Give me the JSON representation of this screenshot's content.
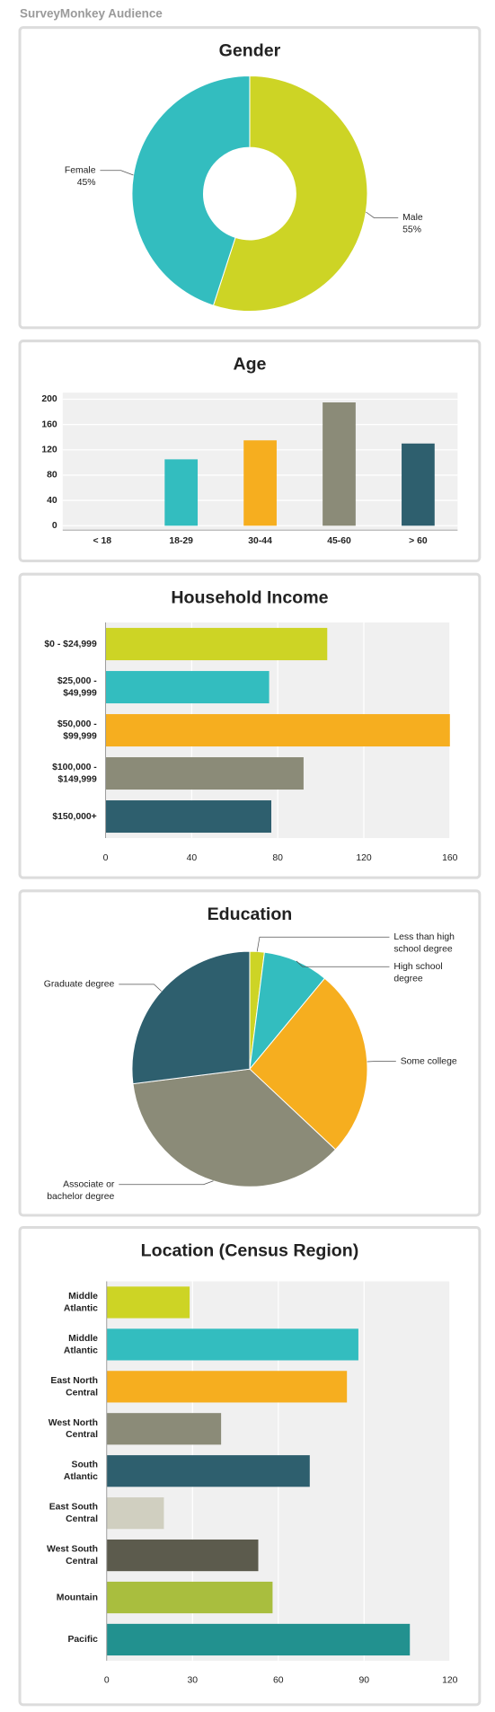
{
  "page_title": "SurveyMonkey Audience",
  "chart_data": [
    {
      "type": "donut",
      "title": "Gender",
      "categories": [
        [
          "Male"
        ],
        [
          "Female"
        ]
      ],
      "values": [
        55,
        45
      ],
      "value_labels": [
        "55%",
        "45%"
      ],
      "colors": [
        "#cdd425",
        "#33bdbf"
      ]
    },
    {
      "type": "bar",
      "title": "Age",
      "categories": [
        [
          "< 18"
        ],
        [
          "18-29"
        ],
        [
          "30-44"
        ],
        [
          "45-60"
        ],
        [
          "> 60"
        ]
      ],
      "values": [
        0,
        105,
        135,
        195,
        130
      ],
      "colors": [
        "#cdd425",
        "#33bdbf",
        "#f6ae1f",
        "#8b8b78",
        "#2e5f6e"
      ],
      "ylim": [
        0,
        200
      ],
      "yticks": [
        0,
        40,
        80,
        120,
        160,
        200
      ],
      "grid": true
    },
    {
      "type": "hbar",
      "title": "Household Income",
      "categories": [
        [
          "$0 - $24,999"
        ],
        [
          "$25,000 -",
          "$49,999"
        ],
        [
          "$50,000 -",
          "$99,999"
        ],
        [
          "$100,000 -",
          "$149,999"
        ],
        [
          "$150,000+"
        ]
      ],
      "values": [
        103,
        76,
        160,
        92,
        77
      ],
      "colors": [
        "#cdd425",
        "#33bdbf",
        "#f6ae1f",
        "#8b8b78",
        "#2e5f6e"
      ],
      "xlim": [
        0,
        160
      ],
      "xticks": [
        0,
        40,
        80,
        120,
        160
      ],
      "grid": true
    },
    {
      "type": "pie",
      "title": "Education",
      "categories": [
        [
          "Less than high",
          "school degree"
        ],
        [
          "High school",
          "degree"
        ],
        [
          "Some college"
        ],
        [
          "Associate or",
          "bachelor degree"
        ],
        [
          "Graduate degree"
        ]
      ],
      "values": [
        2,
        9,
        26,
        36,
        27
      ],
      "colors": [
        "#cdd425",
        "#33bdbf",
        "#f6ae1f",
        "#8b8b78",
        "#2e5f6e"
      ]
    },
    {
      "type": "hbar",
      "title": "Location (Census Region)",
      "categories": [
        [
          "Middle",
          "Atlantic"
        ],
        [
          "Middle",
          "Atlantic"
        ],
        [
          "East North",
          "Central"
        ],
        [
          "West North",
          "Central"
        ],
        [
          "South",
          "Atlantic"
        ],
        [
          "East South",
          "Central"
        ],
        [
          "West South",
          "Central"
        ],
        [
          "Mountain"
        ],
        [
          "Pacific"
        ]
      ],
      "values": [
        29,
        88,
        84,
        40,
        71,
        20,
        53,
        58,
        106
      ],
      "colors": [
        "#cdd425",
        "#33bdbf",
        "#f6ae1f",
        "#8b8b78",
        "#2e5f6e",
        "#d0cfc0",
        "#5c5b4d",
        "#a9be3e",
        "#22918f"
      ],
      "xlim": [
        0,
        120
      ],
      "xticks": [
        0,
        30,
        60,
        90,
        120
      ],
      "grid": true
    }
  ]
}
